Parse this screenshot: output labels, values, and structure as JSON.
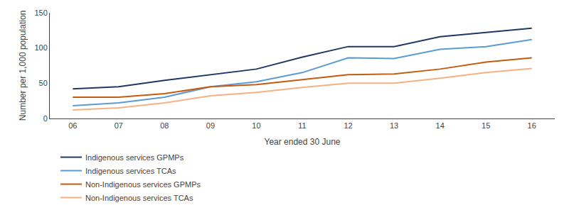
{
  "chart_data": {
    "type": "line",
    "xlabel": "Year ended 30 June",
    "ylabel": "Number per 1,000 population",
    "categories": [
      "06",
      "07",
      "08",
      "09",
      "10",
      "11",
      "12",
      "13",
      "14",
      "15",
      "16"
    ],
    "series": [
      {
        "name": "Indigenous services GPMPs",
        "color": "#1f3864",
        "values": [
          42,
          45,
          54,
          62,
          70,
          87,
          102,
          102,
          116,
          122,
          128
        ]
      },
      {
        "name": "Indigenous services TCAs",
        "color": "#5b9bd5",
        "values": [
          18,
          22,
          30,
          45,
          52,
          65,
          86,
          85,
          98,
          102,
          112
        ]
      },
      {
        "name": "Non-Indigenous services GPMPs",
        "color": "#c55a11",
        "values": [
          30,
          30,
          35,
          45,
          48,
          55,
          62,
          63,
          70,
          80,
          86
        ]
      },
      {
        "name": "Non-Indigenous services TCAs",
        "color": "#f4b183",
        "values": [
          12,
          15,
          22,
          32,
          37,
          44,
          50,
          50,
          57,
          65,
          71
        ]
      }
    ],
    "ylim": [
      0,
      150
    ],
    "yticks": [
      0,
      50,
      100,
      150
    ],
    "grid": false,
    "legend": "bottom"
  }
}
